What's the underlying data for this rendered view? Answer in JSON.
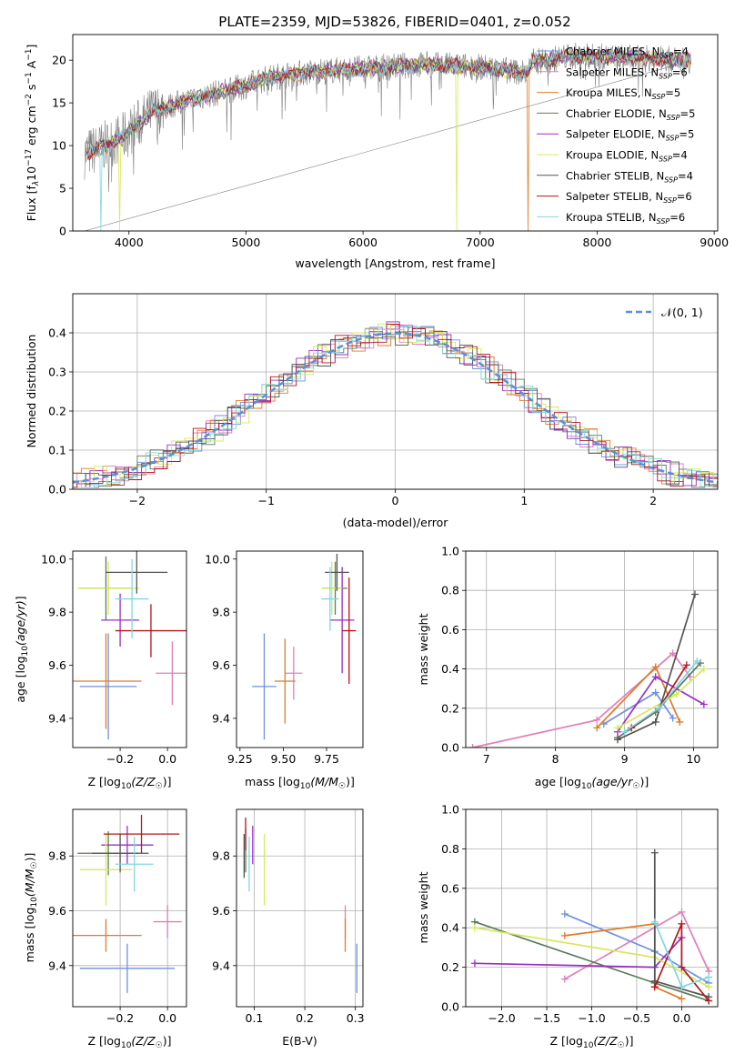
{
  "suptitle": "PLATE=2359, MJD=53826, FIBERID=0401, z=0.052",
  "legend_entries": [
    {
      "name": "Chabrier MILES",
      "n": "4",
      "color": "#6f8fe0"
    },
    {
      "name": "Salpeter MILES",
      "n": "6",
      "color": "#e07fb8"
    },
    {
      "name": "Kroupa MILES",
      "n": "5",
      "color": "#e07b2a"
    },
    {
      "name": "Chabrier ELODIE",
      "n": "5",
      "color": "#5b7a5b"
    },
    {
      "name": "Salpeter ELODIE",
      "n": "5",
      "color": "#9a2fc0"
    },
    {
      "name": "Kroupa ELODIE",
      "n": "4",
      "color": "#d7e85a"
    },
    {
      "name": "Chabrier STELIB",
      "n": "4",
      "color": "#555555"
    },
    {
      "name": "Salpeter STELIB",
      "n": "6",
      "color": "#b0161c"
    },
    {
      "name": "Kroupa STELIB",
      "n": "6",
      "color": "#7fd8e0"
    }
  ],
  "chart_data": [
    {
      "type": "line",
      "xlabel": "wavelength [Angstrom, rest frame]",
      "ylabel_parts": [
        "Flux [f",
        "λ",
        "10",
        "−17",
        " erg cm",
        "−2",
        " s",
        "−1",
        " A",
        "−1",
        "]"
      ],
      "xticks": [
        4000,
        5000,
        6000,
        7000,
        8000,
        9000
      ],
      "yticks": [
        0,
        5,
        10,
        15,
        20
      ],
      "xlim": [
        3520,
        9030
      ],
      "ylim": [
        0,
        23
      ],
      "spectrum_anchors": [
        [
          3620,
          9
        ],
        [
          3800,
          10
        ],
        [
          3950,
          11
        ],
        [
          4200,
          14
        ],
        [
          4500,
          15.3
        ],
        [
          5000,
          17
        ],
        [
          5200,
          18
        ],
        [
          5600,
          18.7
        ],
        [
          6000,
          19
        ],
        [
          6500,
          19.5
        ],
        [
          7000,
          19.2
        ],
        [
          7400,
          18.5
        ],
        [
          7450,
          19.8
        ],
        [
          7800,
          20.5
        ],
        [
          8200,
          20.3
        ],
        [
          8800,
          20
        ]
      ]
    },
    {
      "type": "line",
      "xlabel": "(data-model)/error",
      "ylabel": "Normed distribution",
      "legend": "𝒩(0, 1)",
      "xticks": [
        -2,
        -1,
        0,
        1,
        2
      ],
      "yticks": [
        0.0,
        0.1,
        0.2,
        0.3,
        0.4
      ],
      "xlim": [
        -2.5,
        2.5
      ],
      "ylim": [
        0,
        0.5
      ]
    },
    {
      "type": "scatter",
      "xlabel": "Z [log10(Z/Z☉)]",
      "ylabel": "age [log10(age/yr)]",
      "xticks": [
        -0.2,
        0.0
      ],
      "yticks": [
        9.4,
        9.6,
        9.8,
        10.0
      ],
      "xlim": [
        -0.4,
        0.08
      ],
      "ylim": [
        9.29,
        10.03
      ],
      "points": [
        {
          "x": -0.25,
          "xerr": 0.12,
          "y": 9.52,
          "yerr": 0.2,
          "series": 0
        },
        {
          "x": 0.02,
          "xerr": 0.07,
          "y": 9.57,
          "yerr": 0.12,
          "series": 1
        },
        {
          "x": -0.26,
          "xerr": 0.15,
          "y": 9.54,
          "yerr": 0.18,
          "series": 2
        },
        {
          "x": -0.26,
          "xerr": 0.11,
          "y": 9.89,
          "yerr": 0.12,
          "series": 3
        },
        {
          "x": -0.2,
          "xerr": 0.08,
          "y": 9.77,
          "yerr": 0.1,
          "series": 4
        },
        {
          "x": -0.25,
          "xerr": 0.13,
          "y": 9.89,
          "yerr": 0.1,
          "series": 5
        },
        {
          "x": -0.13,
          "xerr": 0.13,
          "y": 9.95,
          "yerr": 0.08,
          "series": 6
        },
        {
          "x": -0.07,
          "xerr": 0.15,
          "y": 9.73,
          "yerr": 0.1,
          "series": 7
        },
        {
          "x": -0.15,
          "xerr": 0.07,
          "y": 9.85,
          "yerr": 0.15,
          "series": 8
        }
      ]
    },
    {
      "type": "scatter",
      "xlabel": "mass [log10(M/M☉)]",
      "xticks": [
        9.25,
        9.5,
        9.75
      ],
      "yticks": [
        9.4,
        9.6,
        9.8,
        10.0
      ],
      "xlim": [
        9.23,
        9.96
      ],
      "ylim": [
        9.29,
        10.03
      ],
      "points": [
        {
          "x": 9.39,
          "xerr": 0.07,
          "y": 9.52,
          "yerr": 0.2,
          "series": 0
        },
        {
          "x": 9.56,
          "xerr": 0.05,
          "y": 9.57,
          "yerr": 0.1,
          "series": 1
        },
        {
          "x": 9.51,
          "xerr": 0.06,
          "y": 9.54,
          "yerr": 0.16,
          "series": 2
        },
        {
          "x": 9.8,
          "xerr": 0.07,
          "y": 9.89,
          "yerr": 0.1,
          "series": 3
        },
        {
          "x": 9.84,
          "xerr": 0.07,
          "y": 9.77,
          "yerr": 0.2,
          "series": 4
        },
        {
          "x": 9.78,
          "xerr": 0.06,
          "y": 9.89,
          "yerr": 0.1,
          "series": 5
        },
        {
          "x": 9.81,
          "xerr": 0.07,
          "y": 9.95,
          "yerr": 0.07,
          "series": 6
        },
        {
          "x": 9.88,
          "xerr": 0.04,
          "y": 9.73,
          "yerr": 0.2,
          "series": 7
        },
        {
          "x": 9.77,
          "xerr": 0.05,
          "y": 9.85,
          "yerr": 0.12,
          "series": 8
        }
      ]
    },
    {
      "type": "line",
      "xlabel": "age [log10(age/yr)]",
      "ylabel": "mass weight",
      "xticks": [
        7,
        8,
        9,
        10
      ],
      "yticks": [
        0.0,
        0.2,
        0.4,
        0.6,
        0.8,
        1.0
      ],
      "xlim": [
        6.7,
        10.35
      ],
      "ylim": [
        0,
        1
      ],
      "series": [
        {
          "series": 0,
          "x": [
            8.7,
            9.45,
            9.7
          ],
          "y": [
            0.12,
            0.28,
            0.15
          ]
        },
        {
          "series": 1,
          "x": [
            6.8,
            8.6,
            9.7,
            9.95
          ],
          "y": [
            0.0,
            0.14,
            0.48,
            0.36
          ]
        },
        {
          "series": 2,
          "x": [
            8.6,
            9.45,
            9.8
          ],
          "y": [
            0.1,
            0.41,
            0.13
          ]
        },
        {
          "series": 3,
          "x": [
            8.9,
            9.45,
            10.1
          ],
          "y": [
            0.05,
            0.18,
            0.43
          ]
        },
        {
          "series": 4,
          "x": [
            8.9,
            9.45,
            10.15
          ],
          "y": [
            0.08,
            0.36,
            0.22
          ]
        },
        {
          "series": 5,
          "x": [
            8.9,
            9.75,
            10.15
          ],
          "y": [
            0.1,
            0.27,
            0.4
          ]
        },
        {
          "series": 6,
          "x": [
            8.9,
            9.45,
            10.02
          ],
          "y": [
            0.04,
            0.13,
            0.78
          ]
        },
        {
          "series": 7,
          "x": [
            9.1,
            9.5,
            9.9
          ],
          "y": [
            0.1,
            0.2,
            0.42
          ]
        },
        {
          "series": 8,
          "x": [
            9.0,
            9.5,
            10.05
          ],
          "y": [
            0.08,
            0.2,
            0.44
          ]
        }
      ]
    },
    {
      "type": "scatter",
      "xlabel": "Z [log10(Z/Z☉)]",
      "ylabel": "mass [log10(M/M☉)]",
      "xticks": [
        -0.2,
        0.0
      ],
      "yticks": [
        9.4,
        9.6,
        9.8
      ],
      "xlim": [
        -0.4,
        0.08
      ],
      "ylim": [
        9.25,
        9.97
      ],
      "points": [
        {
          "x": -0.17,
          "xerr": 0.2,
          "y": 9.39,
          "yerr": 0.09,
          "series": 0
        },
        {
          "x": 0.0,
          "xerr": 0.06,
          "y": 9.56,
          "yerr": 0.06,
          "series": 1
        },
        {
          "x": -0.26,
          "xerr": 0.15,
          "y": 9.51,
          "yerr": 0.06,
          "series": 2
        },
        {
          "x": -0.25,
          "xerr": 0.13,
          "y": 9.81,
          "yerr": 0.08,
          "series": 3
        },
        {
          "x": -0.17,
          "xerr": 0.11,
          "y": 9.84,
          "yerr": 0.07,
          "series": 4
        },
        {
          "x": -0.26,
          "xerr": 0.11,
          "y": 9.75,
          "yerr": 0.13,
          "series": 5
        },
        {
          "x": -0.2,
          "xerr": 0.12,
          "y": 9.81,
          "yerr": 0.07,
          "series": 6
        },
        {
          "x": -0.11,
          "xerr": 0.16,
          "y": 9.88,
          "yerr": 0.07,
          "series": 7
        },
        {
          "x": -0.14,
          "xerr": 0.08,
          "y": 9.77,
          "yerr": 0.1,
          "series": 8
        }
      ]
    },
    {
      "type": "scatter",
      "xlabel": "E(B-V)",
      "xticks": [
        0.1,
        0.2,
        0.3
      ],
      "yticks": [
        9.4,
        9.6,
        9.8
      ],
      "xlim": [
        0.065,
        0.315
      ],
      "ylim": [
        9.25,
        9.97
      ],
      "points": [
        {
          "x": 0.303,
          "y": 9.39,
          "yerr": 0.09,
          "series": 0
        },
        {
          "x": 0.28,
          "y": 9.56,
          "yerr": 0.06,
          "series": 1
        },
        {
          "x": 0.28,
          "y": 9.51,
          "yerr": 0.06,
          "series": 2
        },
        {
          "x": 0.083,
          "y": 9.82,
          "yerr": 0.08,
          "series": 3
        },
        {
          "x": 0.097,
          "y": 9.84,
          "yerr": 0.07,
          "series": 4
        },
        {
          "x": 0.12,
          "y": 9.75,
          "yerr": 0.13,
          "series": 5
        },
        {
          "x": 0.08,
          "y": 9.8,
          "yerr": 0.08,
          "series": 6
        },
        {
          "x": 0.083,
          "y": 9.88,
          "yerr": 0.06,
          "series": 7
        },
        {
          "x": 0.09,
          "y": 9.77,
          "yerr": 0.1,
          "series": 8
        }
      ]
    },
    {
      "type": "line",
      "xlabel": "Z [log10(Z/Z☉)]",
      "ylabel": "mass weight",
      "xticks": [
        -2.0,
        -1.5,
        -1.0,
        -0.5,
        0.0
      ],
      "yticks": [
        0.0,
        0.2,
        0.4,
        0.6,
        0.8,
        1.0
      ],
      "xlim": [
        -2.4,
        0.4
      ],
      "ylim": [
        0,
        1
      ],
      "series": [
        {
          "series": 0,
          "x": [
            -1.3,
            -0.3,
            0.3
          ],
          "y": [
            0.47,
            0.28,
            0.12
          ]
        },
        {
          "series": 1,
          "x": [
            -1.3,
            0.0,
            0.3
          ],
          "y": [
            0.14,
            0.48,
            0.18
          ]
        },
        {
          "series": 2,
          "x": [
            -1.3,
            -0.3,
            -0.3,
            0.0
          ],
          "y": [
            0.36,
            0.42,
            0.1,
            0.04
          ]
        },
        {
          "series": 3,
          "x": [
            -2.3,
            -0.3,
            0.3
          ],
          "y": [
            0.43,
            0.12,
            0.03
          ]
        },
        {
          "series": 4,
          "x": [
            -2.3,
            -0.3,
            0.0
          ],
          "y": [
            0.22,
            0.2,
            0.35
          ]
        },
        {
          "series": 5,
          "x": [
            -2.3,
            -0.3,
            0.3
          ],
          "y": [
            0.4,
            0.25,
            0.1
          ]
        },
        {
          "series": 6,
          "x": [
            -0.3,
            -0.3,
            0.3
          ],
          "y": [
            0.78,
            0.13,
            0.05
          ]
        },
        {
          "series": 7,
          "x": [
            -0.3,
            0.0,
            0.0,
            0.3
          ],
          "y": [
            0.1,
            0.42,
            0.2,
            0.03
          ]
        },
        {
          "series": 8,
          "x": [
            -0.3,
            0.0,
            0.3
          ],
          "y": [
            0.43,
            0.1,
            0.15
          ]
        }
      ]
    }
  ]
}
